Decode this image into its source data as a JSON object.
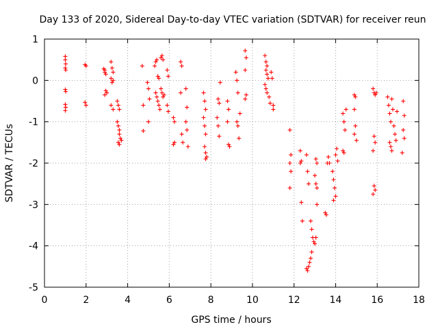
{
  "chart_data": {
    "type": "scatter",
    "title": "Day 133 of 2020, Sidereal Day-to-day VTEC variation (SDTVAR) for receiver reun",
    "xlabel": "GPS time / hours",
    "ylabel": "SDTVAR / TECUs",
    "xlim": [
      0,
      18
    ],
    "ylim": [
      -5,
      1
    ],
    "xticks": [
      0,
      2,
      4,
      6,
      8,
      10,
      12,
      14,
      16,
      18
    ],
    "yticks": [
      -5,
      -4,
      -3,
      -2,
      -1,
      0,
      1
    ],
    "xtick_labels": [
      "0",
      "2",
      "4",
      "6",
      "8",
      "10",
      "12",
      "14",
      "16",
      "18"
    ],
    "ytick_labels": [
      "-5",
      "-4",
      "-3",
      "-2",
      "-1",
      "0",
      "1"
    ],
    "grid": true,
    "marker": "+",
    "marker_color": "#ff0000",
    "series": [
      {
        "name": "SDTVAR",
        "points": [
          [
            1.0,
            0.58
          ],
          [
            1.0,
            0.5
          ],
          [
            1.02,
            0.4
          ],
          [
            1.0,
            0.3
          ],
          [
            1.02,
            0.25
          ],
          [
            1.0,
            -0.22
          ],
          [
            1.02,
            -0.27
          ],
          [
            1.0,
            -0.58
          ],
          [
            1.02,
            -0.65
          ],
          [
            1.0,
            -0.73
          ],
          [
            1.95,
            0.38
          ],
          [
            2.0,
            0.35
          ],
          [
            1.95,
            -0.53
          ],
          [
            2.0,
            -0.6
          ],
          [
            2.85,
            0.28
          ],
          [
            2.9,
            0.2
          ],
          [
            2.95,
            0.15
          ],
          [
            2.9,
            0.25
          ],
          [
            2.95,
            -0.25
          ],
          [
            3.0,
            -0.3
          ],
          [
            2.9,
            -0.35
          ],
          [
            3.2,
            0.45
          ],
          [
            3.25,
            0.3
          ],
          [
            3.3,
            0.2
          ],
          [
            3.2,
            0.05
          ],
          [
            3.3,
            0.0
          ],
          [
            3.25,
            -0.05
          ],
          [
            3.2,
            -0.6
          ],
          [
            3.3,
            -0.7
          ],
          [
            3.5,
            -0.5
          ],
          [
            3.55,
            -0.6
          ],
          [
            3.6,
            -0.7
          ],
          [
            3.5,
            -1.0
          ],
          [
            3.55,
            -1.1
          ],
          [
            3.6,
            -1.2
          ],
          [
            3.6,
            -1.3
          ],
          [
            3.65,
            -1.4
          ],
          [
            3.55,
            -1.5
          ],
          [
            3.6,
            -1.55
          ],
          [
            3.7,
            -1.45
          ],
          [
            4.7,
            0.35
          ],
          [
            4.75,
            -0.6
          ],
          [
            4.75,
            -1.22
          ],
          [
            4.95,
            -0.05
          ],
          [
            5.0,
            -0.2
          ],
          [
            5.05,
            -0.45
          ],
          [
            5.0,
            -1.0
          ],
          [
            5.3,
            0.35
          ],
          [
            5.35,
            0.45
          ],
          [
            5.4,
            0.5
          ],
          [
            5.45,
            0.1
          ],
          [
            5.5,
            0.05
          ],
          [
            5.35,
            -0.3
          ],
          [
            5.4,
            -0.4
          ],
          [
            5.45,
            -0.5
          ],
          [
            5.5,
            -0.6
          ],
          [
            5.55,
            -0.7
          ],
          [
            5.6,
            0.55
          ],
          [
            5.65,
            0.6
          ],
          [
            5.7,
            0.5
          ],
          [
            5.6,
            -0.2
          ],
          [
            5.65,
            -0.3
          ],
          [
            5.7,
            -0.4
          ],
          [
            5.75,
            -0.35
          ],
          [
            5.9,
            0.25
          ],
          [
            5.95,
            0.1
          ],
          [
            5.9,
            -0.6
          ],
          [
            5.95,
            -0.75
          ],
          [
            6.2,
            -1.55
          ],
          [
            6.25,
            -1.5
          ],
          [
            6.2,
            -0.9
          ],
          [
            6.25,
            -1.0
          ],
          [
            6.55,
            0.45
          ],
          [
            6.6,
            0.35
          ],
          [
            6.55,
            -0.3
          ],
          [
            6.6,
            -1.3
          ],
          [
            6.65,
            -1.5
          ],
          [
            6.8,
            -0.2
          ],
          [
            6.85,
            -0.65
          ],
          [
            6.8,
            -1.0
          ],
          [
            6.85,
            -1.2
          ],
          [
            6.9,
            -1.6
          ],
          [
            7.65,
            -0.3
          ],
          [
            7.7,
            -0.5
          ],
          [
            7.75,
            -0.7
          ],
          [
            7.65,
            -0.9
          ],
          [
            7.7,
            -1.1
          ],
          [
            7.75,
            -1.3
          ],
          [
            7.7,
            -1.6
          ],
          [
            7.75,
            -1.75
          ],
          [
            7.8,
            -1.85
          ],
          [
            7.75,
            -1.9
          ],
          [
            8.3,
            -0.9
          ],
          [
            8.35,
            -1.1
          ],
          [
            8.4,
            -1.35
          ],
          [
            8.35,
            -0.45
          ],
          [
            8.4,
            -0.55
          ],
          [
            8.45,
            -0.05
          ],
          [
            8.8,
            -0.5
          ],
          [
            8.85,
            -0.7
          ],
          [
            8.8,
            -1.0
          ],
          [
            8.85,
            -1.55
          ],
          [
            8.9,
            -1.6
          ],
          [
            9.2,
            0.2
          ],
          [
            9.25,
            0.0
          ],
          [
            9.3,
            -0.3
          ],
          [
            9.25,
            -1.0
          ],
          [
            9.3,
            -1.1
          ],
          [
            9.35,
            -1.4
          ],
          [
            9.4,
            -0.8
          ],
          [
            9.65,
            0.72
          ],
          [
            9.7,
            0.55
          ],
          [
            9.65,
            0.25
          ],
          [
            9.7,
            -0.35
          ],
          [
            9.65,
            -0.45
          ],
          [
            10.6,
            0.6
          ],
          [
            10.65,
            0.45
          ],
          [
            10.7,
            0.35
          ],
          [
            10.65,
            0.25
          ],
          [
            10.7,
            0.15
          ],
          [
            10.75,
            0.05
          ],
          [
            10.6,
            -0.1
          ],
          [
            10.65,
            -0.2
          ],
          [
            10.7,
            -0.3
          ],
          [
            10.8,
            -0.4
          ],
          [
            10.85,
            -0.55
          ],
          [
            10.9,
            0.2
          ],
          [
            10.95,
            0.05
          ],
          [
            11.0,
            -0.6
          ],
          [
            11.0,
            -0.7
          ],
          [
            11.8,
            -1.2
          ],
          [
            11.85,
            -1.8
          ],
          [
            11.8,
            -2.0
          ],
          [
            11.85,
            -2.2
          ],
          [
            11.8,
            -2.6
          ],
          [
            12.3,
            -1.7
          ],
          [
            12.35,
            -1.95
          ],
          [
            12.3,
            -2.0
          ],
          [
            12.35,
            -2.95
          ],
          [
            12.4,
            -3.4
          ],
          [
            12.6,
            -1.8
          ],
          [
            12.65,
            -2.2
          ],
          [
            12.7,
            -2.5
          ],
          [
            12.6,
            -4.55
          ],
          [
            12.65,
            -4.6
          ],
          [
            12.7,
            -4.5
          ],
          [
            12.75,
            -4.4
          ],
          [
            12.8,
            -4.3
          ],
          [
            12.85,
            -4.15
          ],
          [
            12.8,
            -3.4
          ],
          [
            12.85,
            -3.6
          ],
          [
            12.9,
            -3.8
          ],
          [
            12.95,
            -3.9
          ],
          [
            13.0,
            -3.95
          ],
          [
            13.05,
            -3.8
          ],
          [
            13.0,
            -2.3
          ],
          [
            13.05,
            -2.5
          ],
          [
            13.1,
            -2.6
          ],
          [
            13.05,
            -1.9
          ],
          [
            13.1,
            -2.0
          ],
          [
            13.1,
            -3.0
          ],
          [
            13.5,
            -3.2
          ],
          [
            13.55,
            -3.25
          ],
          [
            13.6,
            -2.0
          ],
          [
            13.65,
            -1.85
          ],
          [
            13.7,
            -2.0
          ],
          [
            13.85,
            -2.2
          ],
          [
            13.9,
            -2.4
          ],
          [
            13.95,
            -2.6
          ],
          [
            14.0,
            -2.8
          ],
          [
            13.9,
            -2.9
          ],
          [
            14.0,
            -1.8
          ],
          [
            14.05,
            -1.65
          ],
          [
            14.1,
            -1.95
          ],
          [
            14.35,
            -0.8
          ],
          [
            14.4,
            -1.0
          ],
          [
            14.45,
            -1.2
          ],
          [
            14.35,
            -1.7
          ],
          [
            14.4,
            -1.75
          ],
          [
            14.5,
            -0.7
          ],
          [
            14.9,
            -0.35
          ],
          [
            14.95,
            -0.4
          ],
          [
            14.9,
            -0.7
          ],
          [
            14.95,
            -1.1
          ],
          [
            14.9,
            -1.3
          ],
          [
            15.0,
            -1.45
          ],
          [
            15.8,
            -0.2
          ],
          [
            15.85,
            -0.3
          ],
          [
            15.9,
            -0.35
          ],
          [
            15.95,
            -0.3
          ],
          [
            15.85,
            -1.35
          ],
          [
            15.9,
            -1.5
          ],
          [
            15.8,
            -1.7
          ],
          [
            15.85,
            -2.55
          ],
          [
            15.9,
            -2.65
          ],
          [
            15.8,
            -2.75
          ],
          [
            16.5,
            -0.4
          ],
          [
            16.55,
            -0.6
          ],
          [
            16.6,
            -0.8
          ],
          [
            16.65,
            -1.0
          ],
          [
            16.7,
            -0.45
          ],
          [
            16.75,
            -0.7
          ],
          [
            16.8,
            -1.1
          ],
          [
            16.85,
            -1.3
          ],
          [
            16.6,
            -1.5
          ],
          [
            16.65,
            -1.6
          ],
          [
            16.7,
            -1.7
          ],
          [
            16.9,
            -1.45
          ],
          [
            16.95,
            -0.75
          ],
          [
            17.25,
            -0.5
          ],
          [
            17.3,
            -0.85
          ],
          [
            17.25,
            -1.2
          ],
          [
            17.3,
            -1.4
          ],
          [
            17.2,
            -1.75
          ]
        ]
      }
    ]
  }
}
